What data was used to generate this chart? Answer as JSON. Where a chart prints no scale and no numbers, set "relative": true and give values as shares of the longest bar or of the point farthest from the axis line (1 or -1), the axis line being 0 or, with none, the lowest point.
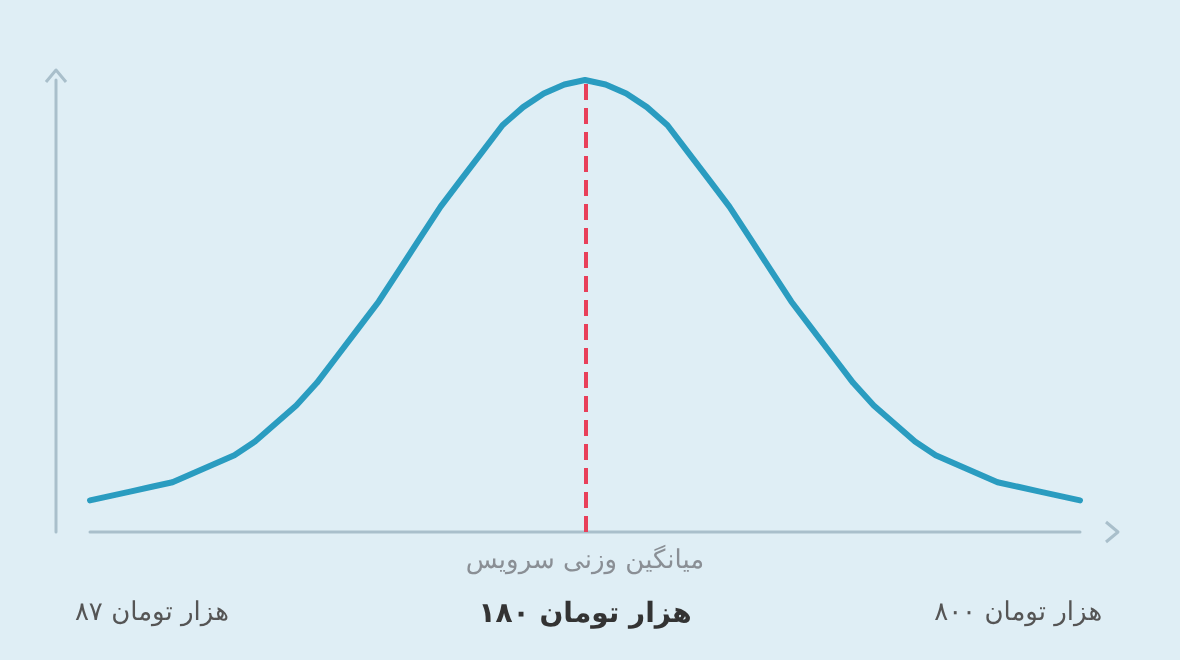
{
  "chart_data": {
    "type": "line",
    "relative": true,
    "categories": [
      null,
      null,
      null,
      "۸۷ هزار تومان",
      null,
      null,
      null,
      null,
      null,
      null,
      null,
      null,
      null,
      null,
      null,
      null,
      null,
      null,
      null,
      null,
      null,
      null,
      null,
      null,
      "۱۸۰ هزار تومان",
      null,
      null,
      null,
      null,
      null,
      null,
      null,
      null,
      null,
      null,
      null,
      null,
      null,
      null,
      null,
      null,
      null,
      null,
      null,
      null,
      "۸۰۰ هزار تومان",
      null,
      null,
      null
    ],
    "series": [
      {
        "color": "#2a9cc0",
        "values": [
          0.07,
          0.08,
          0.09,
          0.1,
          0.11,
          0.13,
          0.15,
          0.17,
          0.2,
          0.24,
          0.28,
          0.33,
          0.39,
          0.45,
          0.51,
          0.58,
          0.65,
          0.72,
          0.78,
          0.84,
          0.9,
          0.94,
          0.97,
          0.99,
          1,
          0.99,
          0.97,
          0.94,
          0.9,
          0.84,
          0.78,
          0.72,
          0.65,
          0.58,
          0.51,
          0.45,
          0.39,
          0.33,
          0.28,
          0.24,
          0.2,
          0.17,
          0.15,
          0.13,
          0.11,
          0.1,
          0.09,
          0.08,
          0.07
        ]
      }
    ],
    "ref_lines": [
      {
        "axis": "x",
        "value": "۱۸۰ هزار تومان",
        "label": "میانگین وزنی سرویس",
        "color": "#e8405a",
        "line_style": "dashed"
      }
    ],
    "grid": false,
    "marker": "none",
    "line_style": "solid"
  }
}
